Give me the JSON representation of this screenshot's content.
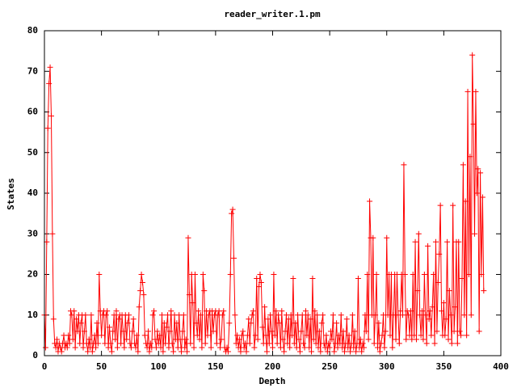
{
  "chart_data": {
    "type": "line",
    "title": "reader_writer.1.pm",
    "x_label": "Depth",
    "y_label": "States",
    "xlim": [
      0,
      400
    ],
    "xticks": [
      0,
      50,
      100,
      150,
      200,
      250,
      300,
      350,
      400
    ],
    "ylim": [
      0,
      80
    ],
    "yticks": [
      0,
      10,
      20,
      30,
      40,
      50,
      60,
      70,
      80
    ],
    "grid": false,
    "marker": "+",
    "x": [
      0,
      1,
      2,
      3,
      4,
      5,
      6,
      7,
      8,
      9,
      10,
      11,
      12,
      13,
      14,
      15,
      16,
      17,
      18,
      19,
      20,
      21,
      22,
      23,
      24,
      25,
      26,
      27,
      28,
      29,
      30,
      31,
      32,
      33,
      34,
      35,
      36,
      37,
      38,
      39,
      40,
      41,
      42,
      43,
      44,
      45,
      46,
      47,
      48,
      49,
      50,
      51,
      52,
      53,
      54,
      55,
      56,
      57,
      58,
      59,
      60,
      61,
      62,
      63,
      64,
      65,
      66,
      67,
      68,
      69,
      70,
      71,
      72,
      73,
      74,
      75,
      76,
      77,
      78,
      79,
      80,
      81,
      82,
      83,
      84,
      85,
      86,
      87,
      88,
      89,
      90,
      91,
      92,
      93,
      94,
      95,
      96,
      97,
      98,
      99,
      100,
      101,
      102,
      103,
      104,
      105,
      106,
      107,
      108,
      109,
      110,
      111,
      112,
      113,
      114,
      115,
      116,
      117,
      118,
      119,
      120,
      121,
      122,
      123,
      124,
      125,
      126,
      127,
      128,
      129,
      130,
      131,
      132,
      133,
      134,
      135,
      136,
      137,
      138,
      139,
      140,
      141,
      142,
      143,
      144,
      145,
      146,
      147,
      148,
      149,
      150,
      151,
      152,
      153,
      154,
      155,
      156,
      157,
      158,
      159,
      160,
      161,
      162,
      163,
      164,
      165,
      166,
      167,
      168,
      169,
      170,
      171,
      172,
      173,
      174,
      175,
      176,
      177,
      178,
      179,
      180,
      181,
      182,
      183,
      184,
      185,
      186,
      187,
      188,
      189,
      190,
      191,
      192,
      193,
      194,
      195,
      196,
      197,
      198,
      199,
      200,
      201,
      202,
      203,
      204,
      205,
      206,
      207,
      208,
      209,
      210,
      211,
      212,
      213,
      214,
      215,
      216,
      217,
      218,
      219,
      220,
      221,
      222,
      223,
      224,
      225,
      226,
      227,
      228,
      229,
      230,
      231,
      232,
      233,
      234,
      235,
      236,
      237,
      238,
      239,
      240,
      241,
      242,
      243,
      244,
      245,
      246,
      247,
      248,
      249,
      250,
      251,
      252,
      253,
      254,
      255,
      256,
      257,
      258,
      259,
      260,
      261,
      262,
      263,
      264,
      265,
      266,
      267,
      268,
      269,
      270,
      271,
      272,
      273,
      274,
      275,
      276,
      277,
      278,
      279,
      280,
      281,
      282,
      283,
      284,
      285,
      286,
      287,
      288,
      289,
      290,
      291,
      292,
      293,
      294,
      295,
      296,
      297,
      298,
      299,
      300,
      301,
      302,
      303,
      304,
      305,
      306,
      307,
      308,
      309,
      310,
      311,
      312,
      313,
      314,
      315,
      316,
      317,
      318,
      319,
      320,
      321,
      322,
      323,
      324,
      325,
      326,
      327,
      328,
      329,
      330,
      331,
      332,
      333,
      334,
      335,
      336,
      337,
      338,
      339,
      340,
      341,
      342,
      343,
      344,
      345,
      346,
      347,
      348,
      349,
      350,
      351,
      352,
      353,
      354,
      355,
      356,
      357,
      358,
      359,
      360,
      361,
      362,
      363,
      364,
      365,
      366,
      367,
      368,
      369,
      370,
      371,
      372,
      373,
      374,
      375,
      376,
      377,
      378,
      379,
      380,
      381,
      382,
      383,
      384,
      385
    ],
    "series": [
      {
        "color": "#ff0000",
        "values": [
          10,
          2,
          28,
          56,
          67,
          71,
          59,
          30,
          9,
          3,
          2,
          4,
          1,
          3,
          2,
          1,
          3,
          5,
          2,
          3,
          2,
          5,
          3,
          11,
          10,
          4,
          11,
          2,
          9,
          6,
          10,
          3,
          8,
          10,
          2,
          6,
          10,
          3,
          1,
          4,
          2,
          10,
          1,
          3,
          5,
          2,
          8,
          3,
          20,
          11,
          5,
          10,
          11,
          3,
          10,
          11,
          2,
          7,
          3,
          1,
          6,
          10,
          4,
          11,
          2,
          9,
          10,
          3,
          10,
          6,
          2,
          10,
          4,
          8,
          10,
          3,
          2,
          6,
          9,
          3,
          2,
          5,
          1,
          12,
          16,
          20,
          18,
          15,
          5,
          3,
          2,
          6,
          1,
          3,
          2,
          10,
          11,
          4,
          2,
          6,
          3,
          5,
          2,
          10,
          1,
          8,
          3,
          7,
          10,
          2,
          6,
          11,
          3,
          1,
          10,
          4,
          8,
          2,
          10,
          4,
          1,
          6,
          10,
          2,
          4,
          1,
          29,
          15,
          3,
          20,
          13,
          2,
          20,
          8,
          5,
          11,
          4,
          10,
          2,
          20,
          16,
          3,
          11,
          5,
          10,
          11,
          2,
          11,
          6,
          10,
          11,
          3,
          10,
          11,
          2,
          4,
          10,
          11,
          2,
          1,
          2,
          1,
          8,
          20,
          35,
          36,
          24,
          10,
          3,
          5,
          2,
          4,
          1,
          5,
          6,
          2,
          3,
          1,
          5,
          9,
          3,
          8,
          10,
          11,
          2,
          5,
          19,
          4,
          17,
          20,
          18,
          7,
          3,
          12,
          5,
          1,
          9,
          3,
          10,
          6,
          2,
          20,
          5,
          11,
          3,
          10,
          8,
          2,
          11,
          4,
          1,
          6,
          10,
          3,
          9,
          2,
          10,
          5,
          19,
          3,
          8,
          2,
          10,
          4,
          1,
          6,
          10,
          3,
          2,
          11,
          5,
          10,
          2,
          9,
          1,
          19,
          4,
          11,
          3,
          10,
          2,
          6,
          1,
          8,
          10,
          3,
          2,
          5,
          1,
          3,
          2,
          6,
          4,
          10,
          1,
          3,
          8,
          2,
          5,
          3,
          10,
          2,
          6,
          1,
          3,
          9,
          2,
          5,
          1,
          3,
          10,
          2,
          6,
          1,
          3,
          19,
          2,
          4,
          1,
          3,
          2,
          10,
          6,
          20,
          4,
          38,
          29,
          10,
          29,
          3,
          10,
          20,
          2,
          8,
          1,
          3,
          5,
          10,
          2,
          6,
          29,
          10,
          20,
          5,
          20,
          2,
          10,
          20,
          4,
          20,
          10,
          3,
          11,
          20,
          10,
          47,
          20,
          4,
          11,
          10,
          5,
          11,
          4,
          20,
          5,
          28,
          4,
          16,
          30,
          10,
          5,
          11,
          4,
          20,
          10,
          3,
          27,
          9,
          11,
          5,
          12,
          20,
          3,
          28,
          6,
          18,
          25,
          37,
          11,
          5,
          13,
          5,
          9,
          28,
          4,
          16,
          10,
          3,
          37,
          6,
          12,
          28,
          3,
          28,
          6,
          5,
          19,
          47,
          10,
          38,
          5,
          65,
          20,
          49,
          10,
          74,
          57,
          30,
          65,
          40,
          46,
          6,
          45,
          20,
          39,
          16
        ]
      }
    ]
  }
}
